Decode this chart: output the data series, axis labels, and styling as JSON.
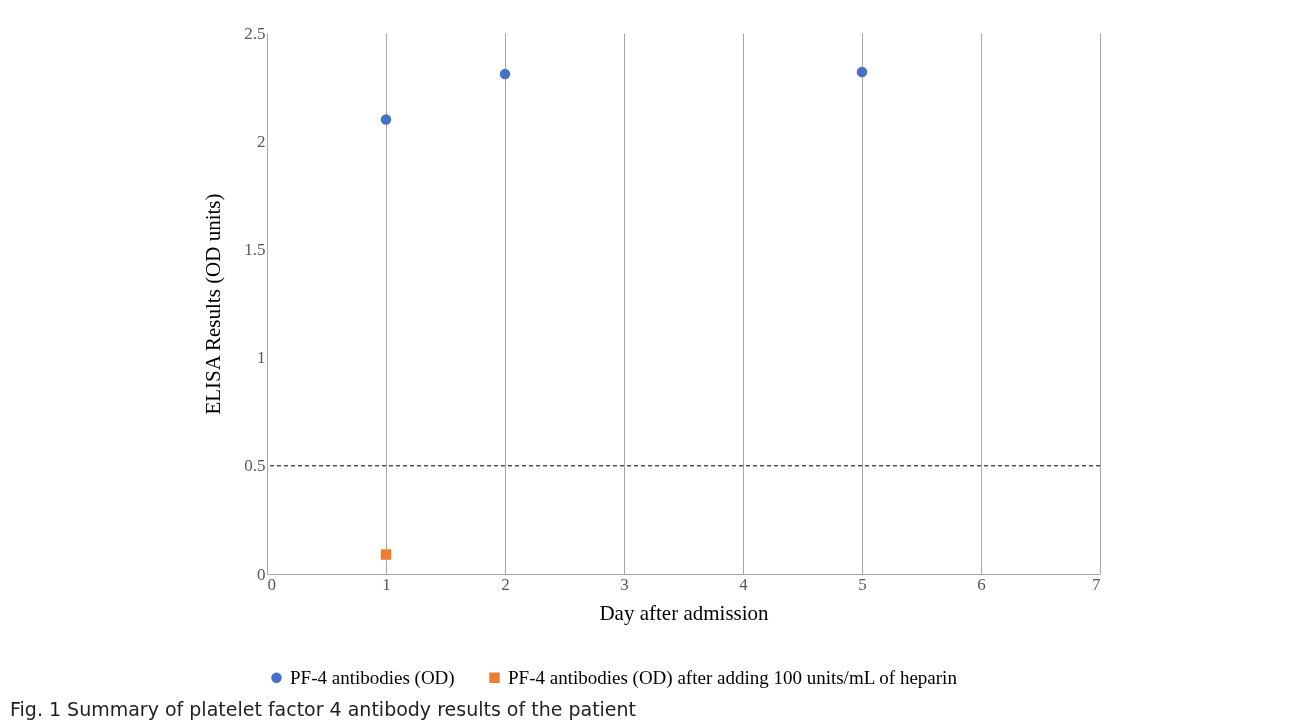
{
  "chart_data": {
    "type": "scatter",
    "xlabel": "Day after admission",
    "ylabel": "ELISA Results (OD units)",
    "xlim": [
      0,
      7
    ],
    "xticks": [
      0,
      1,
      2,
      3,
      4,
      5,
      6,
      7
    ],
    "ylim": [
      0,
      2.5
    ],
    "yticks": [
      0,
      0.5,
      1,
      1.5,
      2,
      2.5
    ],
    "grid": "x",
    "legend": "bottom",
    "series": [
      {
        "name": "PF-4 antibodies (OD)",
        "color": "#4472c4",
        "marker": "circle",
        "x": [
          1,
          2,
          5
        ],
        "values": [
          2.1,
          2.31,
          2.32
        ]
      },
      {
        "name": "PF-4 antibodies (OD) after adding 100 units/mL of heparin",
        "color": "#ed7d31",
        "marker": "square",
        "x": [
          1
        ],
        "values": [
          0.09
        ]
      }
    ],
    "ref_lines": [
      {
        "axis": "y",
        "value": 0.5,
        "label": null,
        "color": "#000000",
        "line_style": "dashed"
      }
    ],
    "annotations": [
      "Fig. 1 Summary of platelet factor 4 antibody results of the patient"
    ]
  }
}
